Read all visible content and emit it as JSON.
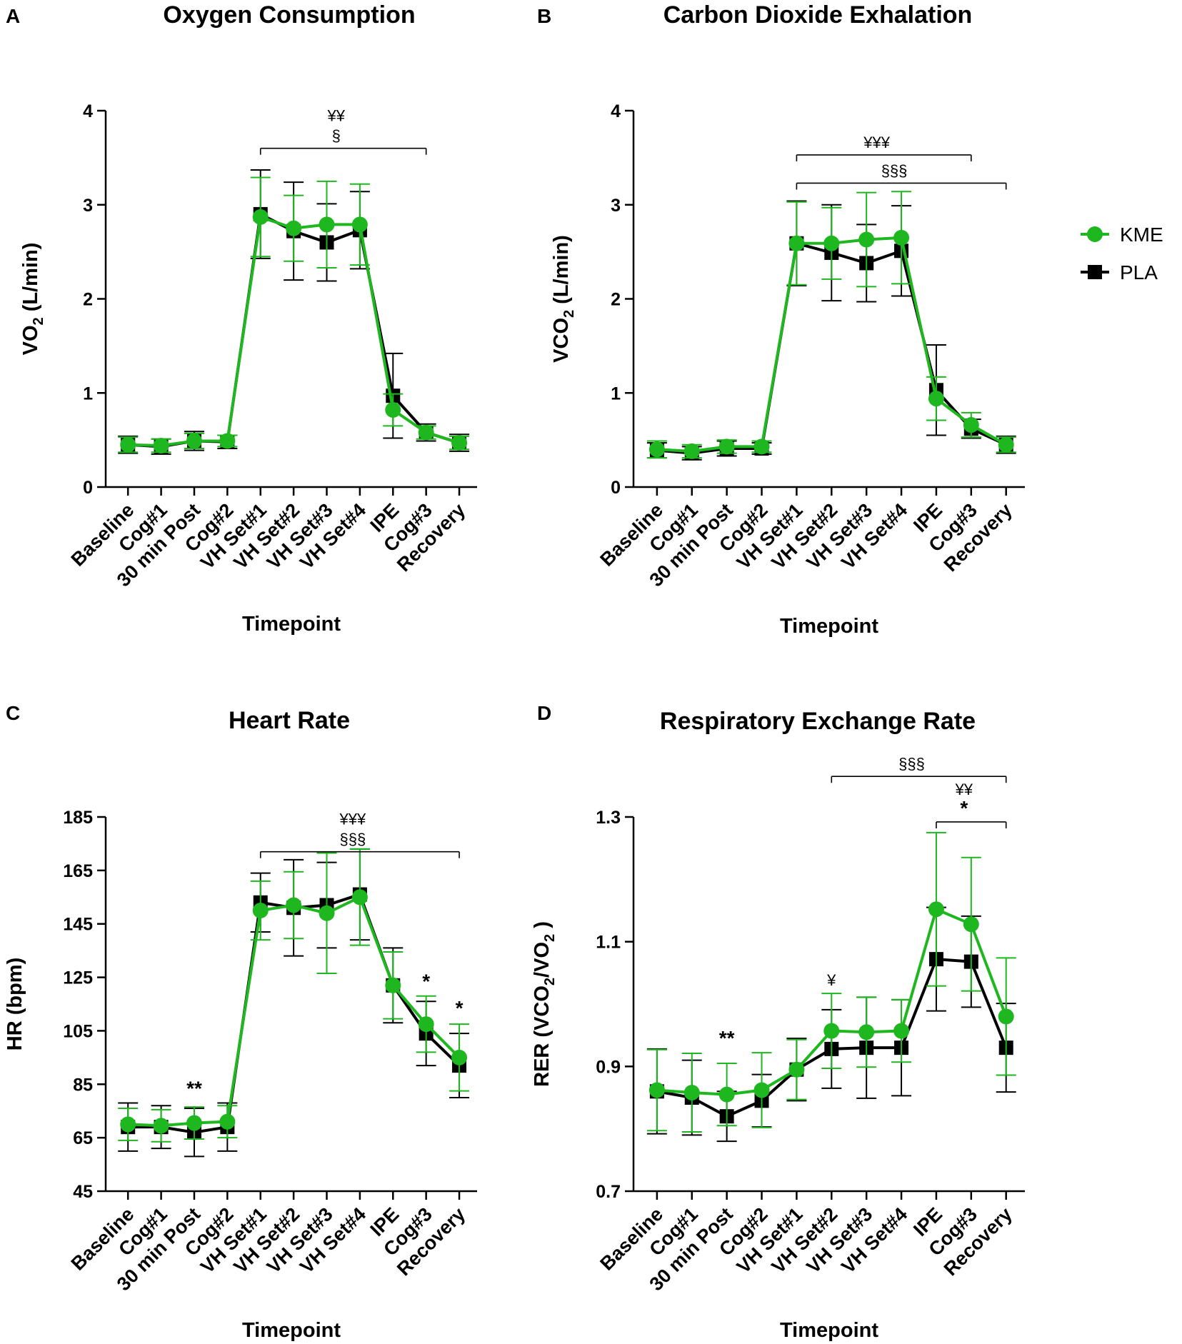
{
  "colors": {
    "KME": "#1fb71f",
    "PLA": "#000000"
  },
  "legend": [
    {
      "label": "KME",
      "marker": "circle",
      "color": "#1fb71f"
    },
    {
      "label": "PLA",
      "marker": "square",
      "color": "#000000"
    }
  ],
  "chart_data": [
    {
      "panel": "A",
      "type": "line",
      "title": "Oxygen Consumption",
      "xlabel": "Timepoint",
      "ylabel_main": "VO",
      "ylabel_sub": "2",
      "ylabel_tail": " (L/min)",
      "ylim": [
        0,
        4
      ],
      "yticks": [
        0,
        1,
        2,
        3,
        4
      ],
      "categories": [
        "Baseline",
        "Cog#1",
        "30 min Post",
        "Cog#2",
        "VH Set#1",
        "VH Set#2",
        "VH Set#3",
        "VH Set#4",
        "IPE",
        "Cog#3",
        "Recovery"
      ],
      "series": [
        {
          "name": "PLA",
          "values": [
            0.45,
            0.43,
            0.49,
            0.48,
            2.9,
            2.72,
            2.6,
            2.73,
            0.97,
            0.58,
            0.47
          ],
          "err": [
            0.09,
            0.08,
            0.1,
            0.07,
            0.47,
            0.52,
            0.41,
            0.41,
            0.45,
            0.09,
            0.09
          ]
        },
        {
          "name": "KME",
          "values": [
            0.45,
            0.44,
            0.49,
            0.49,
            2.87,
            2.75,
            2.79,
            2.79,
            0.82,
            0.58,
            0.47
          ],
          "err": [
            0.08,
            0.07,
            0.08,
            0.06,
            0.42,
            0.35,
            0.46,
            0.43,
            0.17,
            0.07,
            0.07
          ]
        }
      ],
      "brackets": [
        {
          "from": 4,
          "to": 9,
          "y": 3.6,
          "labels": [
            "¥¥",
            "§"
          ]
        }
      ],
      "stars": []
    },
    {
      "panel": "B",
      "type": "line",
      "title": "Carbon Dioxide Exhalation",
      "xlabel": "Timepoint",
      "ylabel_main": "VCO",
      "ylabel_sub": "2",
      "ylabel_tail": " (L/min)",
      "ylim": [
        0,
        4
      ],
      "yticks": [
        0,
        1,
        2,
        3,
        4
      ],
      "categories": [
        "Baseline",
        "Cog#1",
        "30 min Post",
        "Cog#2",
        "VH Set#1",
        "VH Set#2",
        "VH Set#3",
        "VH Set#4",
        "IPE",
        "Cog#3",
        "Recovery"
      ],
      "series": [
        {
          "name": "PLA",
          "values": [
            0.39,
            0.36,
            0.41,
            0.41,
            2.59,
            2.49,
            2.38,
            2.51,
            1.03,
            0.62,
            0.45
          ],
          "err": [
            0.08,
            0.07,
            0.08,
            0.06,
            0.45,
            0.51,
            0.41,
            0.48,
            0.48,
            0.1,
            0.09
          ]
        },
        {
          "name": "KME",
          "values": [
            0.4,
            0.38,
            0.43,
            0.43,
            2.59,
            2.59,
            2.63,
            2.65,
            0.94,
            0.66,
            0.45
          ],
          "err": [
            0.09,
            0.07,
            0.07,
            0.06,
            0.44,
            0.38,
            0.5,
            0.49,
            0.23,
            0.13,
            0.08
          ]
        }
      ],
      "brackets": [
        {
          "from": 4,
          "to": 9,
          "y": 3.53,
          "labels": [
            "¥¥¥"
          ]
        },
        {
          "from": 4,
          "to": 10,
          "y": 3.23,
          "labels": [
            "§§§"
          ]
        }
      ],
      "stars": []
    },
    {
      "panel": "C",
      "type": "line",
      "title": "Heart Rate",
      "xlabel": "Timepoint",
      "ylabel_main": "HR (bpm)",
      "ylabel_sub": "",
      "ylabel_tail": "",
      "ylim": [
        45,
        185
      ],
      "yticks": [
        45,
        65,
        85,
        105,
        125,
        145,
        165,
        185
      ],
      "categories": [
        "Baseline",
        "Cog#1",
        "30 min Post",
        "Cog#2",
        "VH Set#1",
        "VH Set#2",
        "VH Set#3",
        "VH Set#4",
        "IPE",
        "Cog#3",
        "Recovery"
      ],
      "series": [
        {
          "name": "PLA",
          "values": [
            69,
            69,
            67,
            69,
            153,
            151,
            152,
            156,
            122,
            104,
            92
          ],
          "err": [
            9,
            8,
            9,
            9,
            11,
            18,
            16,
            17,
            14,
            12,
            12
          ]
        },
        {
          "name": "KME",
          "values": [
            70,
            69.5,
            70.5,
            71,
            150,
            152,
            149,
            155,
            122,
            107.5,
            95
          ],
          "err": [
            6,
            6,
            6,
            6,
            11,
            12.5,
            22.5,
            18,
            12.5,
            10.5,
            12.5
          ]
        }
      ],
      "brackets": [
        {
          "from": 4,
          "to": 10,
          "y": 172,
          "labels": [
            "¥¥¥",
            "§§§"
          ]
        }
      ],
      "stars": [
        {
          "x": 2,
          "y": 81,
          "label": "**"
        },
        {
          "x": 9,
          "y": 121,
          "label": "*"
        },
        {
          "x": 10,
          "y": 111,
          "label": "*"
        }
      ]
    },
    {
      "panel": "D",
      "type": "line",
      "title": "Respiratory Exchange Rate",
      "xlabel": "Timepoint",
      "ylabel_main": "RER (VCO",
      "ylabel_sub": "2",
      "ylabel_tail": "/VO",
      "ylabel_sub2": "2",
      "ylabel_end": " )",
      "ylim": [
        0.7,
        1.3
      ],
      "yticks": [
        0.7,
        0.9,
        1.1,
        1.3
      ],
      "categories": [
        "Baseline",
        "Cog#1",
        "30 min Post",
        "Cog#2",
        "VH Set#1",
        "VH Set#2",
        "VH Set#3",
        "VH Set#4",
        "IPE",
        "Cog#3",
        "Recovery"
      ],
      "series": [
        {
          "name": "PLA",
          "values": [
            0.86,
            0.85,
            0.82,
            0.845,
            0.895,
            0.928,
            0.93,
            0.93,
            1.072,
            1.068,
            0.93
          ],
          "err": [
            0.068,
            0.06,
            0.04,
            0.042,
            0.05,
            0.063,
            0.081,
            0.077,
            0.083,
            0.073,
            0.071
          ]
        },
        {
          "name": "KME",
          "values": [
            0.862,
            0.858,
            0.855,
            0.862,
            0.895,
            0.957,
            0.955,
            0.957,
            1.152,
            1.128,
            0.98
          ],
          "err": [
            0.065,
            0.063,
            0.05,
            0.06,
            0.048,
            0.06,
            0.056,
            0.05,
            0.123,
            0.107,
            0.094
          ]
        }
      ],
      "brackets": [
        {
          "from": 5,
          "to": 10,
          "y": 1.365,
          "labels": [
            "§§§"
          ]
        },
        {
          "from": 8,
          "to": 10,
          "y": 1.292,
          "labels": [
            "¥¥",
            "*"
          ]
        }
      ],
      "stars": [
        {
          "x": 2,
          "y": 0.935,
          "label": "**"
        },
        {
          "x": 5,
          "y": 1.03,
          "label": "¥"
        }
      ]
    }
  ]
}
